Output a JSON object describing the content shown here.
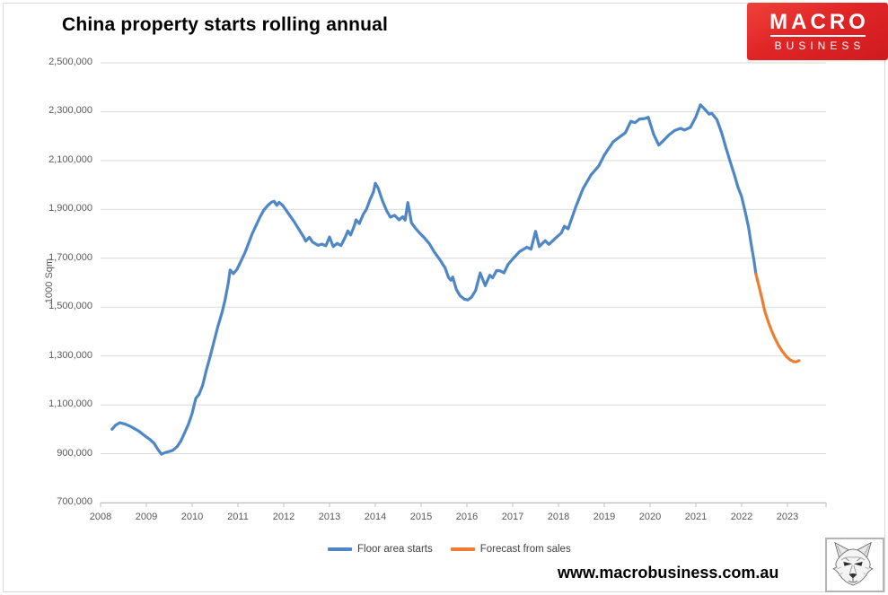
{
  "chart": {
    "title": "China property starts rolling annual",
    "ylabel": "1000 Sqm"
  },
  "logo": {
    "line1": "MACRO",
    "line2": "BUSINESS"
  },
  "footer": {
    "website": "www.macrobusiness.com.au"
  },
  "colors": {
    "series_blue": "#4f86c6",
    "series_orange": "#ED7D31",
    "brand_red": "#e02527",
    "gridline": "#d9d9d9",
    "axis_line": "#bfbfbf",
    "tick_text": "#595959",
    "legend_text": "#404040"
  },
  "chart_data": {
    "type": "line",
    "title": "China property starts rolling annual",
    "xlabel": "",
    "ylabel": "1000 Sqm",
    "ylim": [
      700000,
      2500000
    ],
    "xlim": [
      2008,
      2023.85
    ],
    "grid": true,
    "legend_position": "bottom",
    "y_ticks": [
      2500000,
      2300000,
      2100000,
      1900000,
      1700000,
      1500000,
      1300000,
      1100000,
      900000,
      700000
    ],
    "x_ticks": [
      2008,
      2009,
      2010,
      2011,
      2012,
      2013,
      2014,
      2015,
      2016,
      2017,
      2018,
      2019,
      2020,
      2021,
      2022,
      2023
    ],
    "series": [
      {
        "name": "Floor area starts",
        "color": "#4f86c6",
        "points": [
          [
            2008.25,
            1000000
          ],
          [
            2008.33,
            1017000
          ],
          [
            2008.42,
            1027000
          ],
          [
            2008.54,
            1021000
          ],
          [
            2008.67,
            1010000
          ],
          [
            2008.83,
            993000
          ],
          [
            2008.96,
            974000
          ],
          [
            2009.08,
            958000
          ],
          [
            2009.17,
            942000
          ],
          [
            2009.25,
            918000
          ],
          [
            2009.33,
            898000
          ],
          [
            2009.42,
            905000
          ],
          [
            2009.5,
            909000
          ],
          [
            2009.58,
            914000
          ],
          [
            2009.67,
            929000
          ],
          [
            2009.75,
            951000
          ],
          [
            2009.83,
            983000
          ],
          [
            2009.92,
            1021000
          ],
          [
            2010.0,
            1065000
          ],
          [
            2010.08,
            1127000
          ],
          [
            2010.15,
            1143000
          ],
          [
            2010.23,
            1180000
          ],
          [
            2010.31,
            1242000
          ],
          [
            2010.4,
            1303000
          ],
          [
            2010.48,
            1362000
          ],
          [
            2010.56,
            1420000
          ],
          [
            2010.65,
            1477000
          ],
          [
            2010.72,
            1530000
          ],
          [
            2010.79,
            1600000
          ],
          [
            2010.83,
            1652000
          ],
          [
            2010.9,
            1637000
          ],
          [
            2010.98,
            1655000
          ],
          [
            2011.06,
            1686000
          ],
          [
            2011.15,
            1722000
          ],
          [
            2011.23,
            1760000
          ],
          [
            2011.31,
            1800000
          ],
          [
            2011.4,
            1836000
          ],
          [
            2011.48,
            1868000
          ],
          [
            2011.56,
            1896000
          ],
          [
            2011.65,
            1916000
          ],
          [
            2011.73,
            1929000
          ],
          [
            2011.79,
            1933000
          ],
          [
            2011.85,
            1917000
          ],
          [
            2011.9,
            1929000
          ],
          [
            2011.98,
            1916000
          ],
          [
            2012.1,
            1884000
          ],
          [
            2012.23,
            1849000
          ],
          [
            2012.35,
            1813000
          ],
          [
            2012.44,
            1786000
          ],
          [
            2012.48,
            1770000
          ],
          [
            2012.56,
            1786000
          ],
          [
            2012.63,
            1766000
          ],
          [
            2012.75,
            1753000
          ],
          [
            2012.83,
            1758000
          ],
          [
            2012.92,
            1751000
          ],
          [
            2013.0,
            1787000
          ],
          [
            2013.08,
            1748000
          ],
          [
            2013.17,
            1761000
          ],
          [
            2013.25,
            1752000
          ],
          [
            2013.35,
            1789000
          ],
          [
            2013.4,
            1812000
          ],
          [
            2013.46,
            1795000
          ],
          [
            2013.54,
            1832000
          ],
          [
            2013.58,
            1857000
          ],
          [
            2013.65,
            1842000
          ],
          [
            2013.73,
            1877000
          ],
          [
            2013.81,
            1902000
          ],
          [
            2013.88,
            1938000
          ],
          [
            2013.96,
            1972000
          ],
          [
            2014.0,
            2007000
          ],
          [
            2014.06,
            1988000
          ],
          [
            2014.15,
            1938000
          ],
          [
            2014.25,
            1893000
          ],
          [
            2014.33,
            1868000
          ],
          [
            2014.42,
            1876000
          ],
          [
            2014.52,
            1857000
          ],
          [
            2014.6,
            1870000
          ],
          [
            2014.65,
            1856000
          ],
          [
            2014.71,
            1928000
          ],
          [
            2014.79,
            1845000
          ],
          [
            2014.88,
            1822000
          ],
          [
            2014.96,
            1805000
          ],
          [
            2015.08,
            1782000
          ],
          [
            2015.19,
            1757000
          ],
          [
            2015.29,
            1725000
          ],
          [
            2015.4,
            1697000
          ],
          [
            2015.48,
            1673000
          ],
          [
            2015.52,
            1663000
          ],
          [
            2015.6,
            1621000
          ],
          [
            2015.65,
            1610000
          ],
          [
            2015.69,
            1623000
          ],
          [
            2015.77,
            1572000
          ],
          [
            2015.85,
            1547000
          ],
          [
            2015.94,
            1533000
          ],
          [
            2016.02,
            1529000
          ],
          [
            2016.1,
            1541000
          ],
          [
            2016.19,
            1568000
          ],
          [
            2016.29,
            1640000
          ],
          [
            2016.4,
            1588000
          ],
          [
            2016.5,
            1631000
          ],
          [
            2016.56,
            1620000
          ],
          [
            2016.65,
            1650000
          ],
          [
            2016.73,
            1648000
          ],
          [
            2016.81,
            1640000
          ],
          [
            2016.9,
            1675000
          ],
          [
            2017.0,
            1697000
          ],
          [
            2017.15,
            1727000
          ],
          [
            2017.31,
            1745000
          ],
          [
            2017.4,
            1737000
          ],
          [
            2017.5,
            1810000
          ],
          [
            2017.58,
            1748000
          ],
          [
            2017.71,
            1772000
          ],
          [
            2017.79,
            1757000
          ],
          [
            2017.94,
            1783000
          ],
          [
            2018.06,
            1803000
          ],
          [
            2018.13,
            1831000
          ],
          [
            2018.21,
            1820000
          ],
          [
            2018.38,
            1912000
          ],
          [
            2018.54,
            1986000
          ],
          [
            2018.71,
            2041000
          ],
          [
            2018.88,
            2078000
          ],
          [
            2019.0,
            2122000
          ],
          [
            2019.19,
            2176000
          ],
          [
            2019.33,
            2196000
          ],
          [
            2019.46,
            2214000
          ],
          [
            2019.58,
            2261000
          ],
          [
            2019.67,
            2255000
          ],
          [
            2019.77,
            2270000
          ],
          [
            2019.88,
            2272000
          ],
          [
            2019.96,
            2277000
          ],
          [
            2020.08,
            2206000
          ],
          [
            2020.19,
            2163000
          ],
          [
            2020.29,
            2181000
          ],
          [
            2020.42,
            2206000
          ],
          [
            2020.54,
            2223000
          ],
          [
            2020.67,
            2232000
          ],
          [
            2020.75,
            2225000
          ],
          [
            2020.88,
            2236000
          ],
          [
            2021.0,
            2279000
          ],
          [
            2021.1,
            2328000
          ],
          [
            2021.19,
            2311000
          ],
          [
            2021.29,
            2290000
          ],
          [
            2021.35,
            2293000
          ],
          [
            2021.46,
            2267000
          ],
          [
            2021.56,
            2215000
          ],
          [
            2021.65,
            2156000
          ],
          [
            2021.75,
            2095000
          ],
          [
            2021.85,
            2037000
          ],
          [
            2021.92,
            1991000
          ],
          [
            2022.0,
            1952000
          ],
          [
            2022.08,
            1888000
          ],
          [
            2022.15,
            1827000
          ],
          [
            2022.21,
            1755000
          ],
          [
            2022.27,
            1690000
          ],
          [
            2022.31,
            1637000
          ]
        ]
      },
      {
        "name": "Forecast from sales",
        "color": "#ED7D31",
        "points": [
          [
            2022.31,
            1637000
          ],
          [
            2022.38,
            1584000
          ],
          [
            2022.44,
            1539000
          ],
          [
            2022.5,
            1487000
          ],
          [
            2022.58,
            1440000
          ],
          [
            2022.65,
            1405000
          ],
          [
            2022.73,
            1371000
          ],
          [
            2022.81,
            1342000
          ],
          [
            2022.9,
            1316000
          ],
          [
            2022.98,
            1297000
          ],
          [
            2023.06,
            1284000
          ],
          [
            2023.13,
            1277000
          ],
          [
            2023.19,
            1276000
          ],
          [
            2023.25,
            1281000
          ]
        ]
      }
    ]
  }
}
